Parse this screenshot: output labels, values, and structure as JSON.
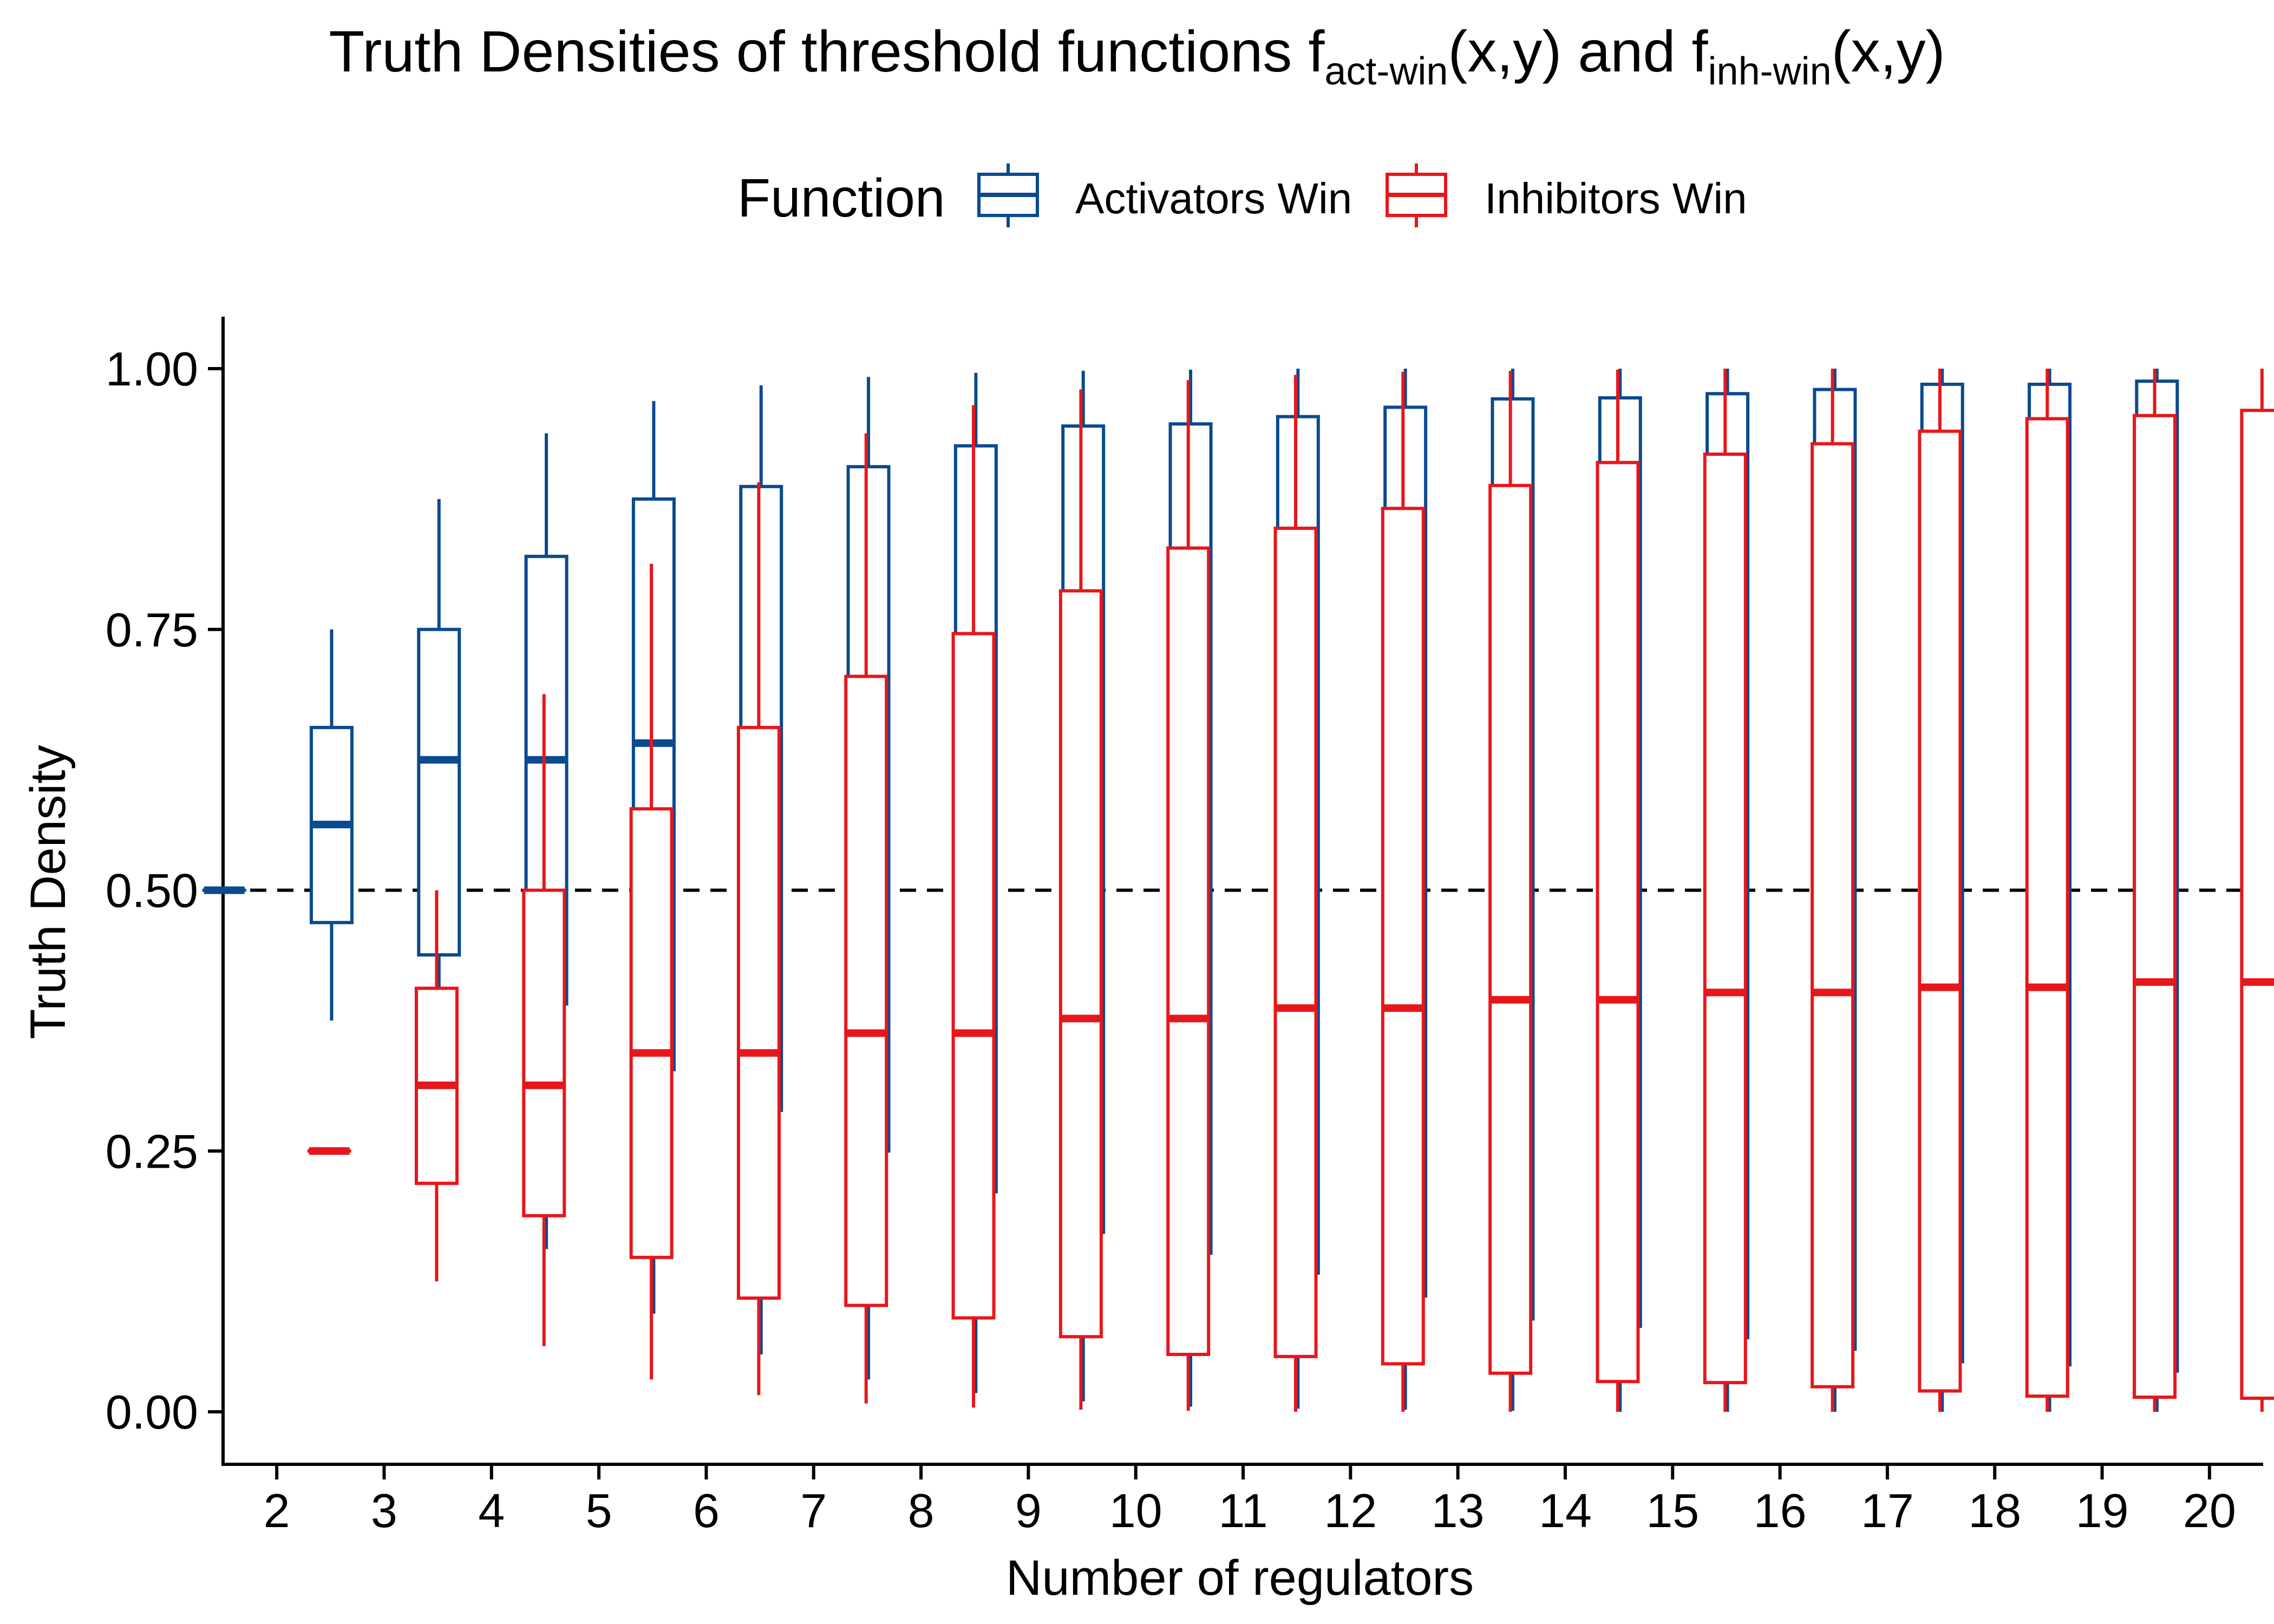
{
  "chart_data": {
    "type": "box",
    "title": {
      "prefix": "Truth Densities of threshold functions f",
      "sub1": "act-win",
      "mid": "(x,y) and f",
      "sub2": "inh-win",
      "suffix": "(x,y)"
    },
    "xlabel": "Number of regulators",
    "ylabel": "Truth Density",
    "categories": [
      "2",
      "3",
      "4",
      "5",
      "6",
      "7",
      "8",
      "9",
      "10",
      "11",
      "12",
      "13",
      "14",
      "15",
      "16",
      "17",
      "18",
      "19",
      "20"
    ],
    "ylim": [
      -0.05,
      1.05
    ],
    "y_ticks": [
      {
        "value": 0,
        "label": "0.00"
      },
      {
        "value": 0.25,
        "label": "0.25"
      },
      {
        "value": 0.5,
        "label": "0.50"
      },
      {
        "value": 0.75,
        "label": "0.75"
      },
      {
        "value": 1,
        "label": "1.00"
      }
    ],
    "reference_line": {
      "y": 0.5,
      "style": "dashed"
    },
    "legend": {
      "title": "Function",
      "position": "top",
      "entries": [
        "Activators Win",
        "Inhibitors Win"
      ]
    },
    "grid": false,
    "series": [
      {
        "name": "Activators Win",
        "color": "#0a4a8f",
        "boxes": [
          {
            "min": 0.5,
            "q1": 0.5,
            "median": 0.5,
            "q3": 0.5,
            "max": 0.5
          },
          {
            "min": 0.375,
            "q1": 0.469,
            "median": 0.563,
            "q3": 0.656,
            "max": 0.75
          },
          {
            "min": 0.25,
            "q1": 0.438,
            "median": 0.625,
            "q3": 0.75,
            "max": 0.875
          },
          {
            "min": 0.156,
            "q1": 0.391,
            "median": 0.625,
            "q3": 0.82,
            "max": 0.938
          },
          {
            "min": 0.094,
            "q1": 0.328,
            "median": 0.641,
            "q3": 0.875,
            "max": 0.969
          },
          {
            "min": 0.055,
            "q1": 0.289,
            "median": 0.629,
            "q3": 0.887,
            "max": 0.984
          },
          {
            "min": 0.031,
            "q1": 0.25,
            "median": 0.633,
            "q3": 0.906,
            "max": 0.992
          },
          {
            "min": 0.018,
            "q1": 0.211,
            "median": 0.621,
            "q3": 0.926,
            "max": 0.996
          },
          {
            "min": 0.01,
            "q1": 0.172,
            "median": 0.623,
            "q3": 0.945,
            "max": 0.998
          },
          {
            "min": 0.005,
            "q1": 0.152,
            "median": 0.613,
            "q3": 0.947,
            "max": 0.999
          },
          {
            "min": 0.003,
            "q1": 0.133,
            "median": 0.613,
            "q3": 0.954,
            "max": 1.0
          },
          {
            "min": 0.002,
            "q1": 0.111,
            "median": 0.605,
            "q3": 0.963,
            "max": 1.0
          },
          {
            "min": 0.001,
            "q1": 0.089,
            "median": 0.605,
            "q3": 0.971,
            "max": 1.0
          },
          {
            "min": 0.0,
            "q1": 0.082,
            "median": 0.598,
            "q3": 0.972,
            "max": 1.0
          },
          {
            "min": 0.0,
            "q1": 0.071,
            "median": 0.598,
            "q3": 0.976,
            "max": 1.0
          },
          {
            "min": 0.0,
            "q1": 0.06,
            "median": 0.593,
            "q3": 0.98,
            "max": 1.0
          },
          {
            "min": 0.0,
            "q1": 0.048,
            "median": 0.593,
            "q3": 0.985,
            "max": 1.0
          },
          {
            "min": 0.0,
            "q1": 0.045,
            "median": 0.588,
            "q3": 0.985,
            "max": 1.0
          },
          {
            "min": 0.0,
            "q1": 0.039,
            "median": 0.588,
            "q3": 0.988,
            "max": 1.0
          }
        ]
      },
      {
        "name": "Inhibitors Win",
        "color": "#e8161b",
        "boxes": [
          {
            "min": 0.25,
            "q1": 0.25,
            "median": 0.25,
            "q3": 0.25,
            "max": 0.25
          },
          {
            "min": 0.125,
            "q1": 0.219,
            "median": 0.313,
            "q3": 0.406,
            "max": 0.5
          },
          {
            "min": 0.063,
            "q1": 0.188,
            "median": 0.313,
            "q3": 0.5,
            "max": 0.688
          },
          {
            "min": 0.031,
            "q1": 0.148,
            "median": 0.344,
            "q3": 0.578,
            "max": 0.813
          },
          {
            "min": 0.016,
            "q1": 0.109,
            "median": 0.344,
            "q3": 0.656,
            "max": 0.891
          },
          {
            "min": 0.008,
            "q1": 0.102,
            "median": 0.363,
            "q3": 0.705,
            "max": 0.938
          },
          {
            "min": 0.004,
            "q1": 0.09,
            "median": 0.363,
            "q3": 0.746,
            "max": 0.965
          },
          {
            "min": 0.002,
            "q1": 0.072,
            "median": 0.377,
            "q3": 0.787,
            "max": 0.98
          },
          {
            "min": 0.001,
            "q1": 0.055,
            "median": 0.377,
            "q3": 0.828,
            "max": 0.989
          },
          {
            "min": 0.0,
            "q1": 0.053,
            "median": 0.387,
            "q3": 0.847,
            "max": 0.994
          },
          {
            "min": 0.0,
            "q1": 0.046,
            "median": 0.387,
            "q3": 0.866,
            "max": 0.997
          },
          {
            "min": 0.0,
            "q1": 0.037,
            "median": 0.395,
            "q3": 0.888,
            "max": 0.998
          },
          {
            "min": 0.0,
            "q1": 0.029,
            "median": 0.395,
            "q3": 0.91,
            "max": 0.999
          },
          {
            "min": 0.0,
            "q1": 0.028,
            "median": 0.402,
            "q3": 0.918,
            "max": 1.0
          },
          {
            "min": 0.0,
            "q1": 0.024,
            "median": 0.402,
            "q3": 0.928,
            "max": 1.0
          },
          {
            "min": 0.0,
            "q1": 0.02,
            "median": 0.407,
            "q3": 0.94,
            "max": 1.0
          },
          {
            "min": 0.0,
            "q1": 0.015,
            "median": 0.407,
            "q3": 0.952,
            "max": 1.0
          },
          {
            "min": 0.0,
            "q1": 0.014,
            "median": 0.412,
            "q3": 0.955,
            "max": 1.0
          },
          {
            "min": 0.0,
            "q1": 0.013,
            "median": 0.412,
            "q3": 0.96,
            "max": 1.0
          }
        ]
      }
    ]
  }
}
